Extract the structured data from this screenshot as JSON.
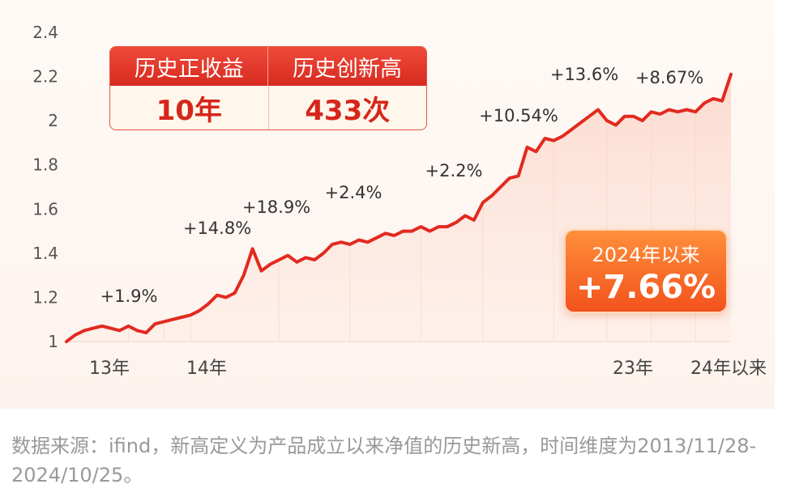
{
  "chart_data": {
    "type": "line",
    "ylim": [
      1,
      2.4
    ],
    "yticks": [
      "2.4",
      "2.2",
      "2",
      "1.8",
      "1.6",
      "1.4",
      "1.2",
      "1"
    ],
    "xtick_labels": [
      "13年",
      "14年",
      "23年",
      "24年以来"
    ],
    "series": [
      {
        "values": [
          1.0,
          1.03,
          1.05,
          1.06,
          1.07,
          1.06,
          1.05,
          1.07,
          1.05,
          1.04,
          1.08,
          1.09,
          1.1,
          1.11,
          1.12,
          1.14,
          1.17,
          1.21,
          1.2,
          1.22,
          1.3,
          1.42,
          1.32,
          1.35,
          1.37,
          1.39,
          1.36,
          1.38,
          1.37,
          1.4,
          1.44,
          1.45,
          1.44,
          1.46,
          1.45,
          1.47,
          1.49,
          1.48,
          1.5,
          1.5,
          1.52,
          1.5,
          1.52,
          1.52,
          1.54,
          1.57,
          1.55,
          1.63,
          1.66,
          1.7,
          1.74,
          1.75,
          1.88,
          1.86,
          1.92,
          1.91,
          1.93,
          1.96,
          1.99,
          2.02,
          2.05,
          2.0,
          1.98,
          2.02,
          2.02,
          2.0,
          2.04,
          2.03,
          2.05,
          2.04,
          2.05,
          2.04,
          2.08,
          2.1,
          2.09,
          2.21
        ]
      }
    ],
    "period_labels": [
      "+1.9%",
      "+14.8%",
      "+18.9%",
      "+2.4%",
      "+2.2%",
      "+10.54%",
      "+13.6%",
      "+8.67%"
    ]
  },
  "stats": {
    "history_years_label": "历史正收益",
    "history_years_value": "10年",
    "new_highs_label": "历史创新高",
    "new_highs_value": "433次"
  },
  "since_2024": {
    "title": "2024年以来",
    "value": "+7.66%"
  },
  "footnote": "数据来源：ifind，新高定义为产品成立以来净值的历史新高，时间维度为2013/11/28-2024/10/25。",
  "colors": {
    "line": "#e22a1f",
    "area": "#fde0d6",
    "accent": "#d6261b",
    "badge": "#f26a28"
  }
}
